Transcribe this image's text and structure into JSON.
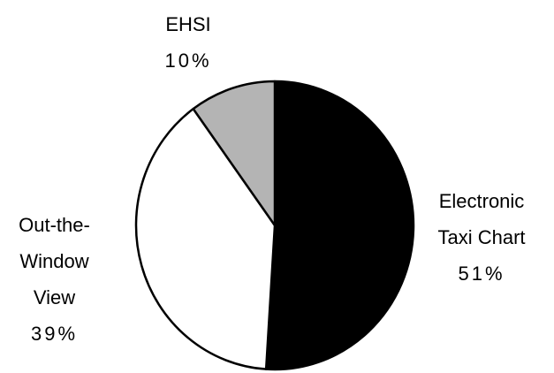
{
  "chart_data": {
    "type": "pie",
    "categories": [
      "Electronic Taxi Chart",
      "Out-the-Window View",
      "EHSI"
    ],
    "values": [
      51,
      39,
      10
    ],
    "value_labels": [
      "51%",
      "39%",
      "10%"
    ],
    "colors": [
      "#000000",
      "#ffffff",
      "#b4b4b4"
    ],
    "start": "top",
    "direction": "clockwise"
  }
}
